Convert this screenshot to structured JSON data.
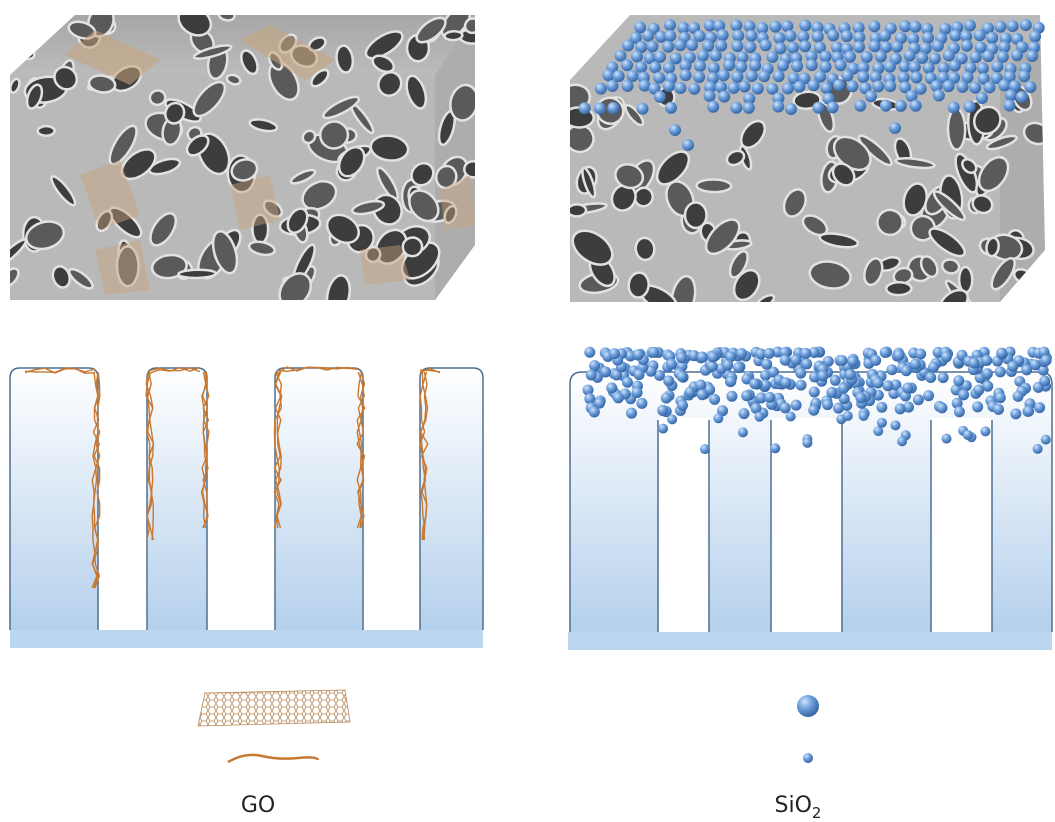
{
  "labels": {
    "left": "GO",
    "right": {
      "base": "SiO",
      "subscript": "2"
    }
  }
}
